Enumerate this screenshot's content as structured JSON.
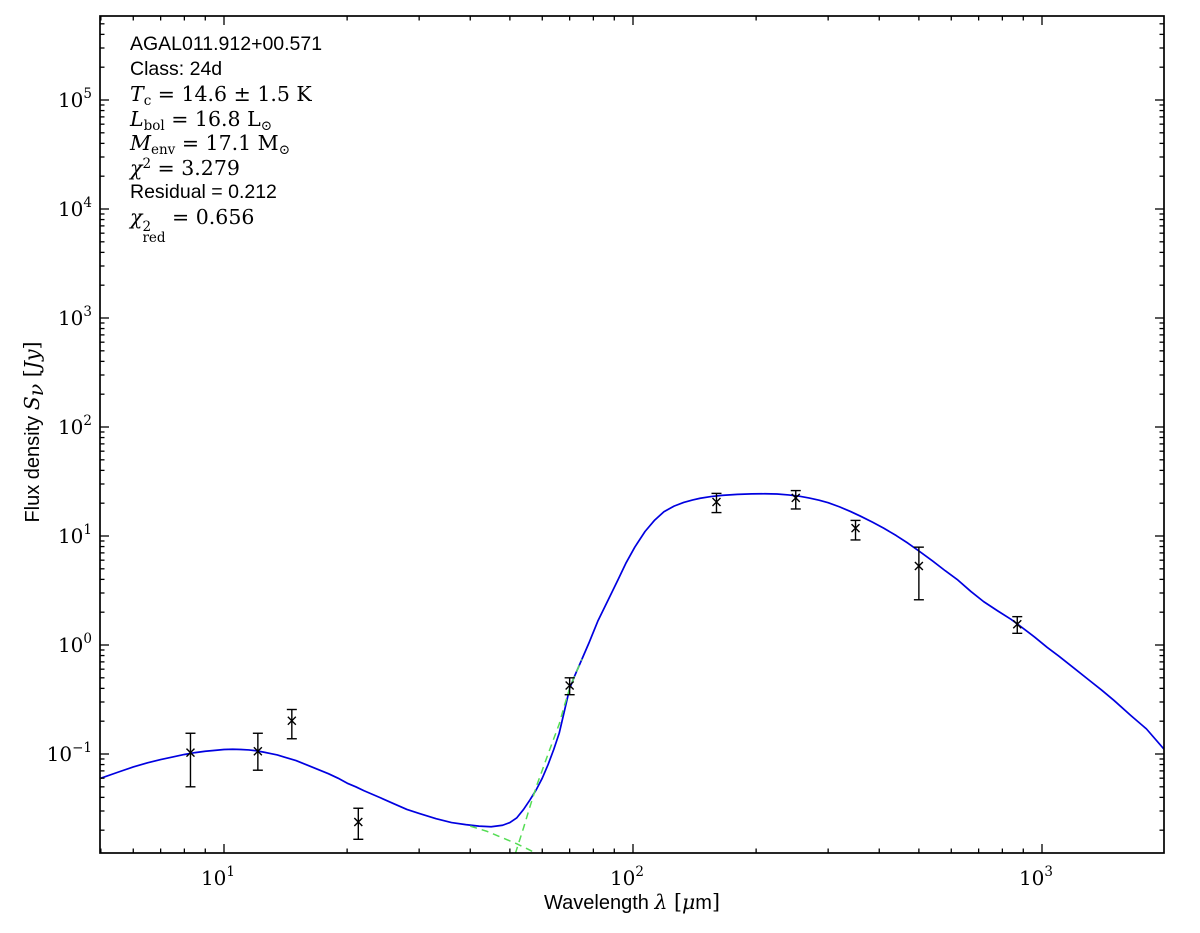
{
  "figure": {
    "background": "#ffffff",
    "frame_color": "#000000",
    "curve_blue": "#0000e0",
    "curve_green": "#55dd55",
    "marker_color": "#000000"
  },
  "chart_data": {
    "type": "line",
    "title": "",
    "xlabel": "Wavelength λ [μm]",
    "ylabel": "Flux density Sν [Jy]",
    "x_axis": {
      "scale": "log",
      "min": 4.98,
      "max": 1990,
      "labeled_decades": [
        1,
        2,
        3
      ]
    },
    "y_axis": {
      "scale": "log",
      "min": 0.01236,
      "max": 590000,
      "labeled_decades": [
        -1,
        0,
        1,
        2,
        3,
        4,
        5
      ]
    },
    "grid": false,
    "legend": "none",
    "xlabel_segments": [
      {
        "t": "Wavelength ",
        "f": "sans"
      },
      {
        "t": "λ",
        "f": "si"
      },
      {
        "t": " [",
        "f": "serif"
      },
      {
        "t": "μ",
        "f": "si"
      },
      {
        "t": "m",
        "f": "sans"
      },
      {
        "t": "]",
        "f": "serif"
      }
    ],
    "ylabel_segments": [
      {
        "t": "Flux density ",
        "f": "sans"
      },
      {
        "t": "S",
        "f": "si"
      },
      {
        "t": "ν",
        "f": "si",
        "pos": "sub"
      },
      {
        "t": " [",
        "f": "serif"
      },
      {
        "t": "Jy",
        "f": "si"
      },
      {
        "t": "]",
        "f": "serif"
      }
    ],
    "annotation_lines": [
      {
        "name": "source-name",
        "segs": [
          {
            "t": "AGAL011.912+00.571",
            "f": "sans"
          }
        ]
      },
      {
        "name": "class",
        "segs": [
          {
            "t": "Class: 24d",
            "f": "sans"
          }
        ]
      },
      {
        "name": "temperature",
        "segs": [
          {
            "t": "T",
            "f": "si"
          },
          {
            "t": "c",
            "f": "serif",
            "pos": "sub"
          },
          {
            "t": " = 14.6 ± 1.5 K",
            "f": "serif"
          }
        ]
      },
      {
        "name": "luminosity",
        "segs": [
          {
            "t": "L",
            "f": "si"
          },
          {
            "t": "bol",
            "f": "serif",
            "pos": "sub"
          },
          {
            "t": " = 16.8 L",
            "f": "serif"
          },
          {
            "t": "⊙",
            "f": "serif",
            "pos": "sub"
          }
        ]
      },
      {
        "name": "envelope-mass",
        "segs": [
          {
            "t": "M",
            "f": "si"
          },
          {
            "t": "env",
            "f": "serif",
            "pos": "sub"
          },
          {
            "t": " = 17.1 M",
            "f": "serif"
          },
          {
            "t": "⊙",
            "f": "serif",
            "pos": "sub"
          }
        ]
      },
      {
        "name": "chi-square",
        "segs": [
          {
            "t": "χ",
            "f": "si"
          },
          {
            "t": "2",
            "f": "serif",
            "pos": "sup"
          },
          {
            "t": " = 3.279",
            "f": "serif"
          }
        ]
      },
      {
        "name": "residual",
        "segs": [
          {
            "t": "Residual = 0.212",
            "f": "sans"
          }
        ]
      },
      {
        "name": "chi-square-reduced",
        "segs": [
          {
            "t": "χ",
            "f": "si"
          },
          {
            "stack": {
              "sup": "2",
              "sub": "red"
            },
            "f": "serif"
          },
          {
            "t": " = 0.656",
            "f": "serif"
          }
        ]
      }
    ],
    "series": [
      {
        "name": "total-model-fit",
        "color": "#0000e0",
        "style": "solid",
        "width": 1.7,
        "points": [
          [
            5,
            0.06
          ],
          [
            5.5,
            0.068
          ],
          [
            6,
            0.076
          ],
          [
            6.5,
            0.083
          ],
          [
            7,
            0.089
          ],
          [
            7.5,
            0.094
          ],
          [
            8,
            0.099
          ],
          [
            8.5,
            0.103
          ],
          [
            9,
            0.106
          ],
          [
            9.5,
            0.108
          ],
          [
            10,
            0.11
          ],
          [
            10.5,
            0.1105
          ],
          [
            11,
            0.11
          ],
          [
            11.5,
            0.109
          ],
          [
            12,
            0.107
          ],
          [
            12.5,
            0.104
          ],
          [
            13,
            0.101
          ],
          [
            13.5,
            0.098
          ],
          [
            14,
            0.094
          ],
          [
            15,
            0.087
          ],
          [
            16,
            0.079
          ],
          [
            17,
            0.072
          ],
          [
            18,
            0.066
          ],
          [
            19,
            0.06
          ],
          [
            20,
            0.054
          ],
          [
            21,
            0.05
          ],
          [
            22,
            0.046
          ],
          [
            24,
            0.04
          ],
          [
            26,
            0.035
          ],
          [
            28,
            0.031
          ],
          [
            30,
            0.0285
          ],
          [
            33,
            0.0255
          ],
          [
            36,
            0.0235
          ],
          [
            39,
            0.0225
          ],
          [
            42,
            0.0218
          ],
          [
            45,
            0.0215
          ],
          [
            48,
            0.0222
          ],
          [
            50,
            0.0235
          ],
          [
            52,
            0.026
          ],
          [
            54,
            0.031
          ],
          [
            56,
            0.038
          ],
          [
            58,
            0.047
          ],
          [
            60,
            0.06
          ],
          [
            62,
            0.08
          ],
          [
            64,
            0.11
          ],
          [
            66,
            0.155
          ],
          [
            68,
            0.25
          ],
          [
            70,
            0.4
          ],
          [
            72,
            0.52
          ],
          [
            75,
            0.74
          ],
          [
            78,
            1.04
          ],
          [
            82,
            1.65
          ],
          [
            87,
            2.6
          ],
          [
            92,
            4.0
          ],
          [
            96,
            5.6
          ],
          [
            101,
            7.9
          ],
          [
            107,
            11.0
          ],
          [
            113,
            14.0
          ],
          [
            119,
            16.7
          ],
          [
            126,
            18.8
          ],
          [
            133,
            20.3
          ],
          [
            140,
            21.4
          ],
          [
            146,
            22.2
          ],
          [
            155,
            23.0
          ],
          [
            165,
            23.6
          ],
          [
            180,
            24.1
          ],
          [
            195,
            24.35
          ],
          [
            210,
            24.4
          ],
          [
            225,
            24.3
          ],
          [
            240,
            23.8
          ],
          [
            255,
            23.2
          ],
          [
            270,
            22.3
          ],
          [
            285,
            21.3
          ],
          [
            300,
            20.2
          ],
          [
            320,
            18.5
          ],
          [
            340,
            16.8
          ],
          [
            360,
            15.2
          ],
          [
            385,
            13.4
          ],
          [
            410,
            11.8
          ],
          [
            440,
            10.1
          ],
          [
            470,
            8.6
          ],
          [
            500,
            7.3
          ],
          [
            540,
            5.9
          ],
          [
            580,
            4.8
          ],
          [
            620,
            4.0
          ],
          [
            670,
            3.1
          ],
          [
            720,
            2.5
          ],
          [
            780,
            2.05
          ],
          [
            840,
            1.72
          ],
          [
            900,
            1.42
          ],
          [
            960,
            1.18
          ],
          [
            1030,
            0.95
          ],
          [
            1100,
            0.79
          ],
          [
            1200,
            0.61
          ],
          [
            1300,
            0.48
          ],
          [
            1400,
            0.385
          ],
          [
            1500,
            0.31
          ],
          [
            1650,
            0.225
          ],
          [
            1800,
            0.17
          ],
          [
            1990,
            0.11
          ]
        ]
      },
      {
        "name": "hot-component",
        "color": "#55dd55",
        "style": "dashed",
        "width": 1.5,
        "points": [
          [
            40,
            0.0218
          ],
          [
            44,
            0.0195
          ],
          [
            48,
            0.017
          ],
          [
            52,
            0.015
          ],
          [
            56,
            0.0131
          ],
          [
            60,
            0.0114
          ],
          [
            64,
            0.01
          ],
          [
            67,
            0.0091
          ]
        ]
      },
      {
        "name": "cold-component",
        "color": "#55dd55",
        "style": "dashed",
        "width": 1.5,
        "points": [
          [
            48,
            0.006
          ],
          [
            50,
            0.0085
          ],
          [
            52,
            0.0135
          ],
          [
            54,
            0.021
          ],
          [
            56,
            0.033
          ],
          [
            58,
            0.05
          ],
          [
            60,
            0.071
          ],
          [
            62,
            0.1
          ],
          [
            64,
            0.138
          ],
          [
            66,
            0.188
          ],
          [
            68,
            0.28
          ],
          [
            70,
            0.4
          ],
          [
            72,
            0.52
          ],
          [
            75,
            0.74
          ]
        ]
      }
    ],
    "data_points": {
      "marker": "x",
      "color": "#000000",
      "points": [
        {
          "wavelength_um": 8.28,
          "flux_jy": 0.103,
          "err_lo": 0.05,
          "err_hi": 0.155
        },
        {
          "wavelength_um": 12.1,
          "flux_jy": 0.106,
          "err_lo": 0.071,
          "err_hi": 0.155
        },
        {
          "wavelength_um": 14.65,
          "flux_jy": 0.202,
          "err_lo": 0.138,
          "err_hi": 0.256
        },
        {
          "wavelength_um": 21.3,
          "flux_jy": 0.0238,
          "err_lo": 0.0165,
          "err_hi": 0.0318
        },
        {
          "wavelength_um": 70,
          "flux_jy": 0.425,
          "err_lo": 0.35,
          "err_hi": 0.5
        },
        {
          "wavelength_um": 160,
          "flux_jy": 20.5,
          "err_lo": 16.4,
          "err_hi": 24.6
        },
        {
          "wavelength_um": 250,
          "flux_jy": 22.4,
          "err_lo": 17.7,
          "err_hi": 26.1
        },
        {
          "wavelength_um": 350,
          "flux_jy": 11.8,
          "err_lo": 9.2,
          "err_hi": 13.9
        },
        {
          "wavelength_um": 500,
          "flux_jy": 5.3,
          "err_lo": 2.6,
          "err_hi": 7.9
        },
        {
          "wavelength_um": 870,
          "flux_jy": 1.55,
          "err_lo": 1.28,
          "err_hi": 1.82
        }
      ]
    }
  }
}
